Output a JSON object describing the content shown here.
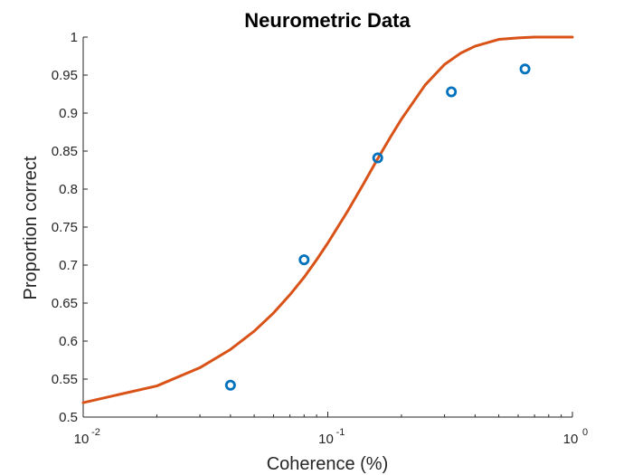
{
  "chart_data": {
    "type": "scatter",
    "title": "Neurometric Data",
    "xlabel": "Coherence (%)",
    "ylabel": "Proportion correct",
    "xscale": "log",
    "xlim": [
      0.01,
      1
    ],
    "ylim": [
      0.5,
      1
    ],
    "grid": false,
    "x_ticks": [
      {
        "base": "10",
        "exp": "-2",
        "value": 0.01
      },
      {
        "base": "10",
        "exp": "-1",
        "value": 0.1
      },
      {
        "base": "10",
        "exp": "0",
        "value": 1
      }
    ],
    "y_ticks": [
      "0.5",
      "0.55",
      "0.6",
      "0.65",
      "0.7",
      "0.75",
      "0.8",
      "0.85",
      "0.9",
      "0.95",
      "1"
    ],
    "series": [
      {
        "kind": "markers",
        "color": "#0072BD",
        "points": [
          {
            "x": 0.04,
            "y": 0.542
          },
          {
            "x": 0.08,
            "y": 0.707
          },
          {
            "x": 0.16,
            "y": 0.841
          },
          {
            "x": 0.32,
            "y": 0.928
          },
          {
            "x": 0.64,
            "y": 0.958
          }
        ]
      },
      {
        "kind": "line",
        "color": "#D95319",
        "points": [
          {
            "x": 0.01,
            "y": 0.519
          },
          {
            "x": 0.02,
            "y": 0.541
          },
          {
            "x": 0.03,
            "y": 0.565
          },
          {
            "x": 0.04,
            "y": 0.589
          },
          {
            "x": 0.05,
            "y": 0.613
          },
          {
            "x": 0.06,
            "y": 0.637
          },
          {
            "x": 0.07,
            "y": 0.661
          },
          {
            "x": 0.08,
            "y": 0.684
          },
          {
            "x": 0.09,
            "y": 0.707
          },
          {
            "x": 0.1,
            "y": 0.729
          },
          {
            "x": 0.12,
            "y": 0.77
          },
          {
            "x": 0.14,
            "y": 0.807
          },
          {
            "x": 0.16,
            "y": 0.84
          },
          {
            "x": 0.18,
            "y": 0.868
          },
          {
            "x": 0.2,
            "y": 0.892
          },
          {
            "x": 0.25,
            "y": 0.937
          },
          {
            "x": 0.3,
            "y": 0.964
          },
          {
            "x": 0.35,
            "y": 0.979
          },
          {
            "x": 0.4,
            "y": 0.988
          },
          {
            "x": 0.5,
            "y": 0.997
          },
          {
            "x": 0.6,
            "y": 0.999
          },
          {
            "x": 0.7,
            "y": 1.0
          },
          {
            "x": 1.0,
            "y": 1.0
          }
        ]
      }
    ]
  }
}
